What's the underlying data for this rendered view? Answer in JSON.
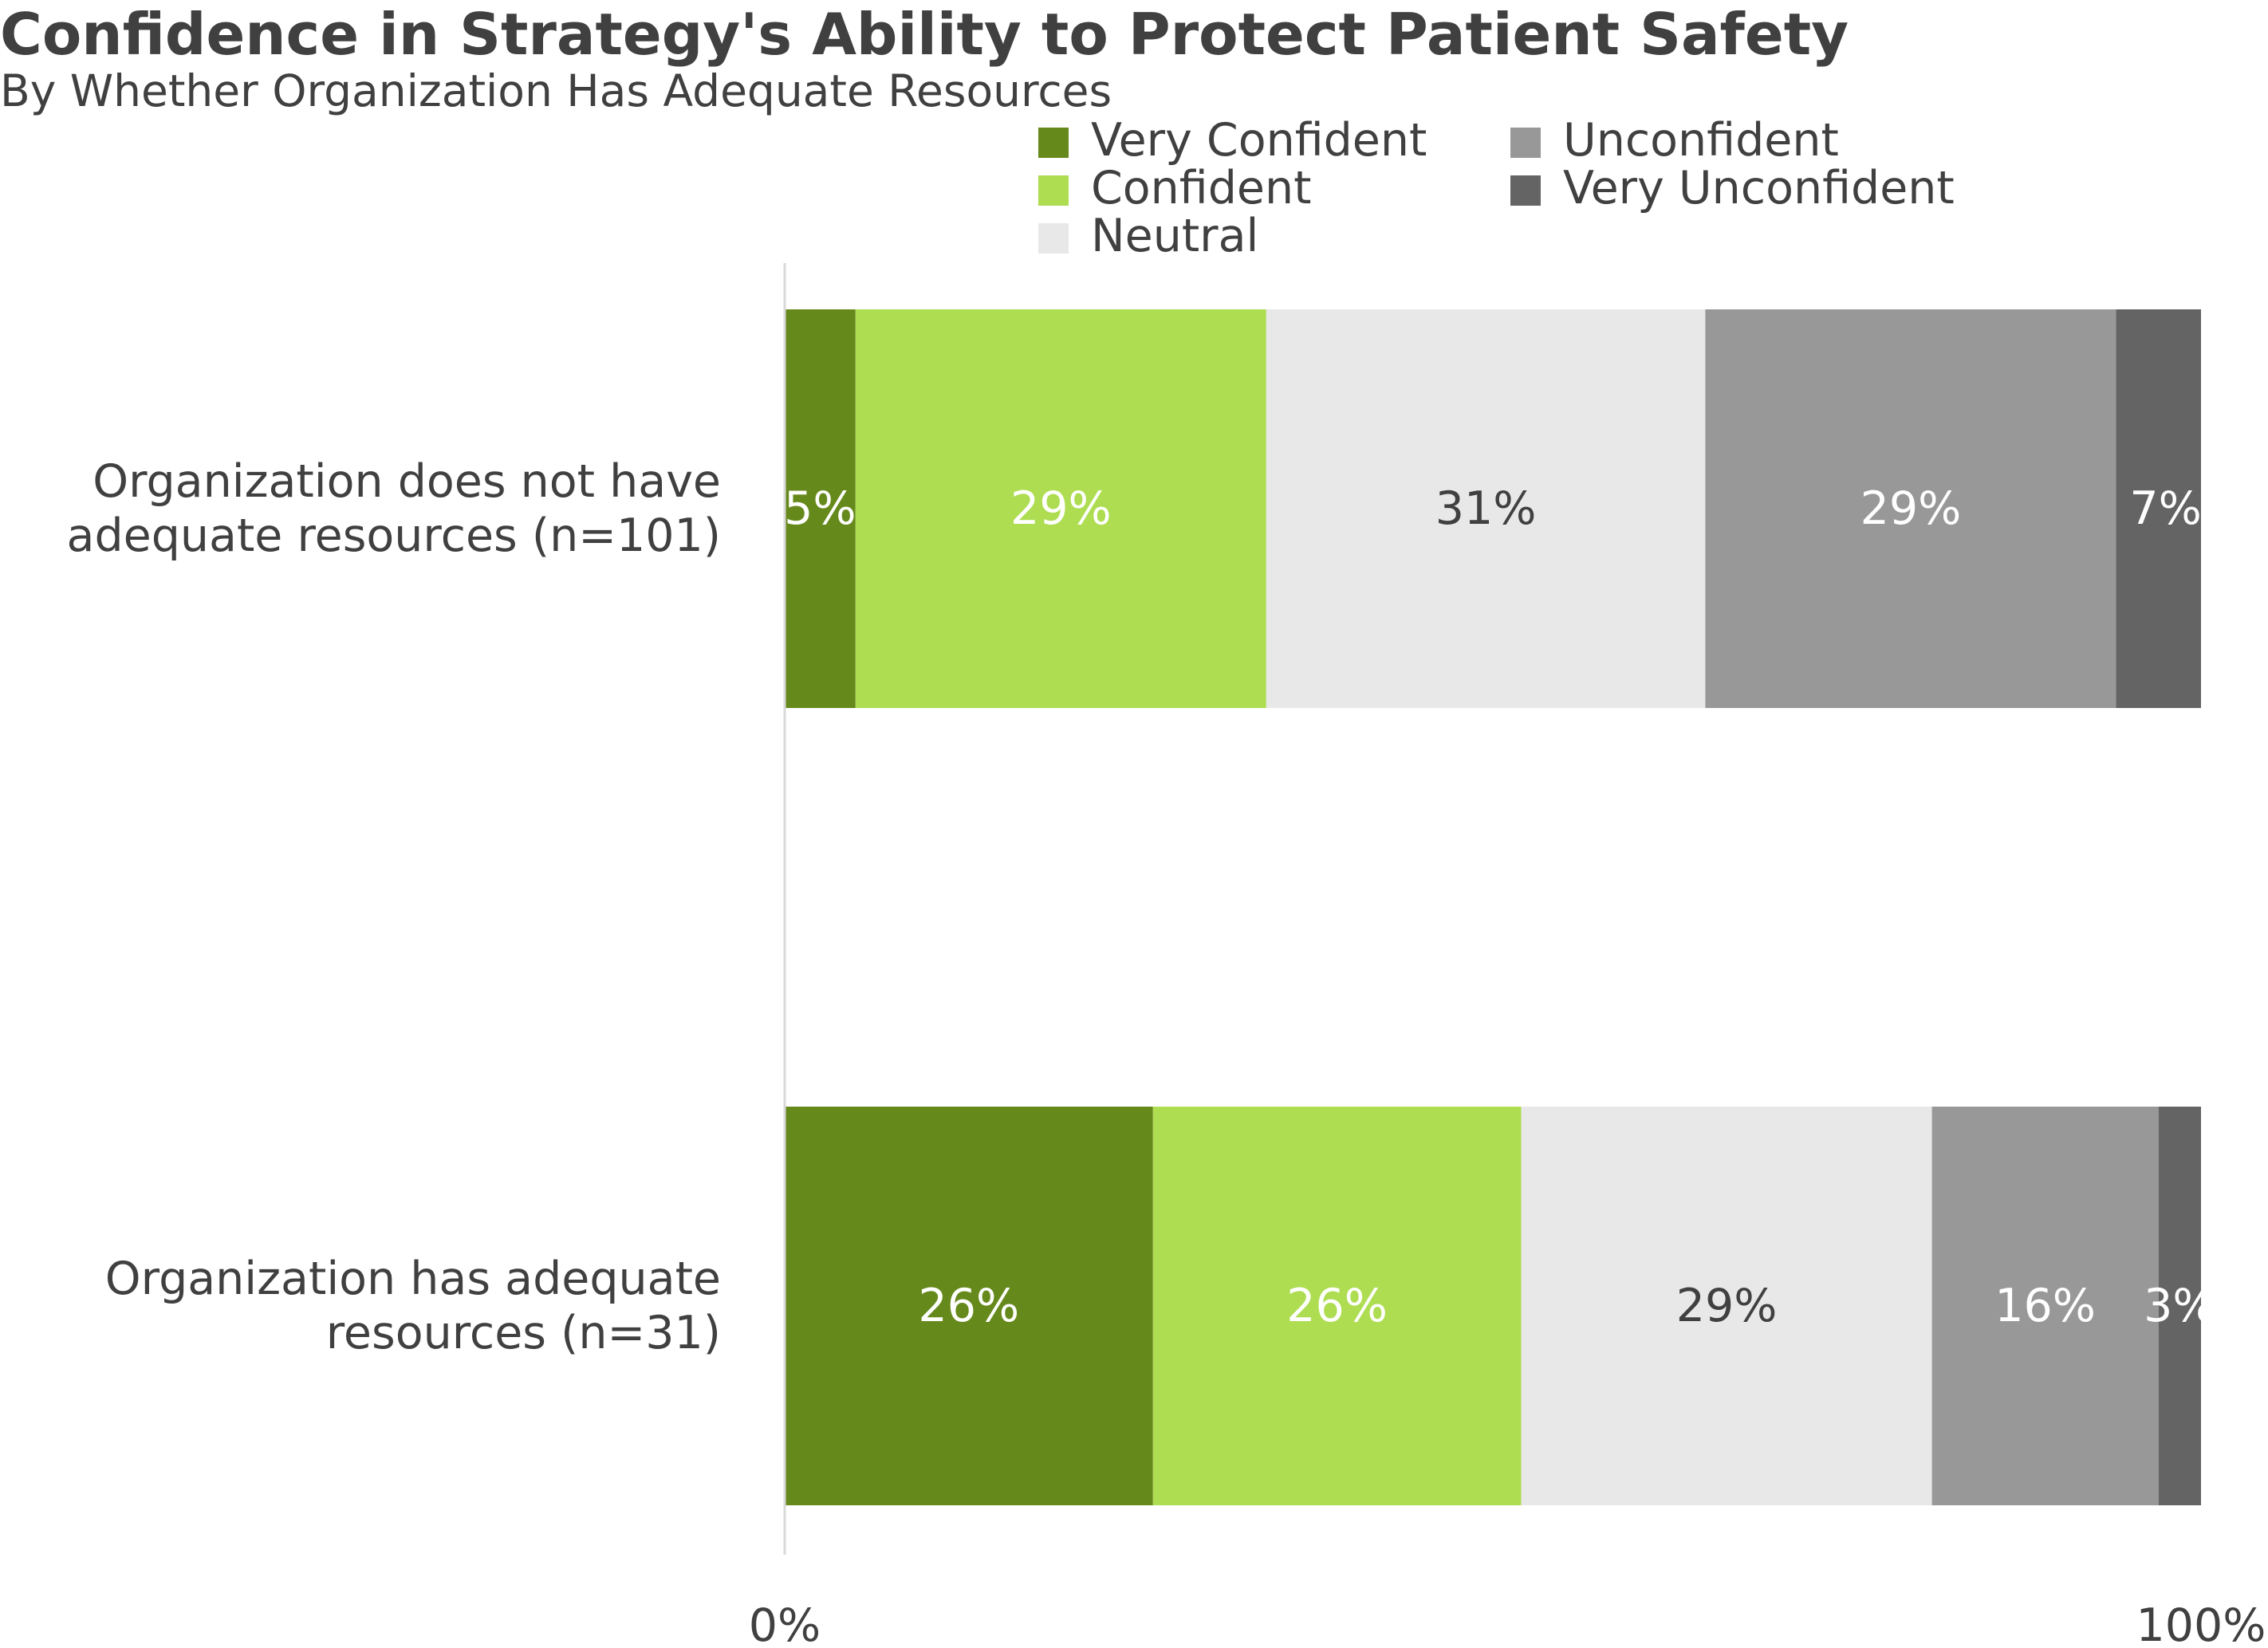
{
  "chart_data": {
    "type": "bar",
    "orientation": "horizontal",
    "stacked": true,
    "percent_stacked": true,
    "title": "Confidence in Strategy's Ability to Protect Patient Safety",
    "subtitle": "By Whether Organization Has Adequate Resources",
    "categories": [
      "Organization does not have adequate resources (n=101)",
      "Organization has adequate resources (n=31)"
    ],
    "category_lines": [
      [
        "Organization does not have",
        "adequate resources (n=101)"
      ],
      [
        "Organization has adequate",
        "resources (n=31)"
      ]
    ],
    "series": [
      {
        "name": "Very Confident",
        "color": "#66891c",
        "label_color": "#ffffff",
        "values": [
          5,
          26
        ]
      },
      {
        "name": "Confident",
        "color": "#aedd52",
        "label_color": "#ffffff",
        "values": [
          29,
          26
        ]
      },
      {
        "name": "Neutral",
        "color": "#e8e8e8",
        "label_color": "#404040",
        "values": [
          31,
          29
        ]
      },
      {
        "name": "Unconfident",
        "color": "#989898",
        "label_color": "#ffffff",
        "values": [
          29,
          16
        ]
      },
      {
        "name": "Very Unconfident",
        "color": "#646464",
        "label_color": "#ffffff",
        "values": [
          7,
          3
        ]
      }
    ],
    "data_labels": [
      [
        "5%",
        "29%",
        "31%",
        "29%",
        "7%"
      ],
      [
        "26%",
        "26%",
        "29%",
        "16%",
        "3%"
      ]
    ],
    "xlim": [
      0,
      100
    ],
    "x_tick_labels": [
      "0%",
      "100%"
    ],
    "legend_position": "top-right",
    "grid": false
  }
}
